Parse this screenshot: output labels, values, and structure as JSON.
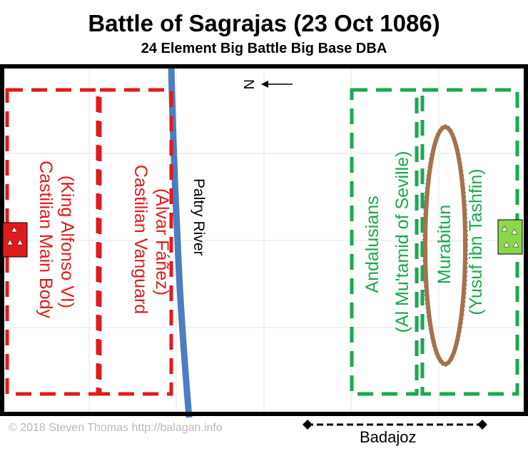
{
  "title": "Battle of Sagrajas (23 Oct 1086)",
  "subtitle": "24 Element Big Battle Big Base DBA",
  "compass": {
    "label": "N",
    "icon": "north-arrow-icon"
  },
  "terrain": {
    "river_label": "Paltry River"
  },
  "armies": {
    "castilian": {
      "color": "#e01b1b",
      "commands": [
        {
          "lines": [
            "Castilian Main Body",
            "(King Alfonso VI)"
          ]
        },
        {
          "lines": [
            "Castilian Vanguard",
            "(Álvar Fáñez)"
          ]
        }
      ],
      "camp_icon": "red-camp-icon"
    },
    "andalusian": {
      "color": "#1aa84f",
      "commands": [
        {
          "lines": [
            "Andalusians",
            "(Al Mu'tamid of Seville)"
          ]
        },
        {
          "lines": [
            "Murabitun",
            "(Yusuf ibn Tashfin)"
          ]
        }
      ],
      "camp_icon": "green-camp-icon"
    }
  },
  "copyright": "© 2018 Steven Thomas http://balagan.info",
  "exit_label": "Badajoz"
}
